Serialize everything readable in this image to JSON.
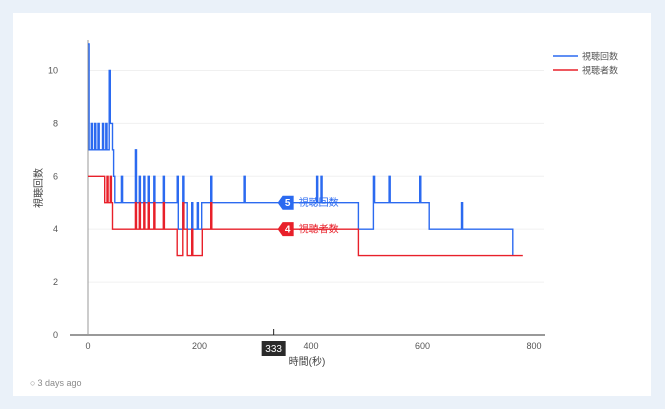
{
  "footer": {
    "timestamp_icon": "clock-icon",
    "timestamp": "3 days ago"
  },
  "chart_data": {
    "type": "line",
    "xlabel": "時間(秒)",
    "ylabel": "視聴回数",
    "xlim": [
      0,
      800
    ],
    "ylim": [
      0,
      11
    ],
    "x_ticks": [
      0,
      200,
      400,
      600,
      800
    ],
    "y_ticks": [
      0,
      2,
      4,
      6,
      8,
      10
    ],
    "legend_position": "top-right",
    "cursor": {
      "x": 333,
      "label": "333"
    },
    "series": [
      {
        "name": "視聴回数",
        "color": "#2b6af0",
        "cursor_value": 5,
        "points": [
          [
            0,
            11
          ],
          [
            2,
            11
          ],
          [
            2,
            7
          ],
          [
            6,
            7
          ],
          [
            6,
            8
          ],
          [
            8,
            8
          ],
          [
            8,
            7
          ],
          [
            12,
            7
          ],
          [
            12,
            8
          ],
          [
            14,
            8
          ],
          [
            14,
            7
          ],
          [
            18,
            7
          ],
          [
            18,
            8
          ],
          [
            20,
            8
          ],
          [
            20,
            7
          ],
          [
            26,
            7
          ],
          [
            26,
            8
          ],
          [
            28,
            8
          ],
          [
            28,
            7
          ],
          [
            32,
            7
          ],
          [
            32,
            8
          ],
          [
            34,
            8
          ],
          [
            34,
            7
          ],
          [
            38,
            7
          ],
          [
            38,
            10
          ],
          [
            40,
            10
          ],
          [
            40,
            8
          ],
          [
            44,
            8
          ],
          [
            44,
            7
          ],
          [
            46,
            7
          ],
          [
            46,
            6
          ],
          [
            48,
            6
          ],
          [
            48,
            5
          ],
          [
            60,
            5
          ],
          [
            60,
            6
          ],
          [
            62,
            6
          ],
          [
            62,
            5
          ],
          [
            85,
            5
          ],
          [
            85,
            7
          ],
          [
            87,
            7
          ],
          [
            87,
            5
          ],
          [
            92,
            5
          ],
          [
            92,
            6
          ],
          [
            94,
            6
          ],
          [
            94,
            5
          ],
          [
            100,
            5
          ],
          [
            100,
            6
          ],
          [
            102,
            6
          ],
          [
            102,
            5
          ],
          [
            108,
            5
          ],
          [
            108,
            6
          ],
          [
            110,
            6
          ],
          [
            110,
            5
          ],
          [
            118,
            5
          ],
          [
            118,
            6
          ],
          [
            120,
            6
          ],
          [
            120,
            5
          ],
          [
            135,
            5
          ],
          [
            135,
            6
          ],
          [
            137,
            6
          ],
          [
            137,
            5
          ],
          [
            160,
            5
          ],
          [
            160,
            6
          ],
          [
            162,
            6
          ],
          [
            162,
            4
          ],
          [
            170,
            4
          ],
          [
            170,
            6
          ],
          [
            172,
            6
          ],
          [
            172,
            5
          ],
          [
            178,
            5
          ],
          [
            178,
            4
          ],
          [
            186,
            4
          ],
          [
            186,
            5
          ],
          [
            188,
            5
          ],
          [
            188,
            4
          ],
          [
            196,
            4
          ],
          [
            196,
            5
          ],
          [
            198,
            5
          ],
          [
            198,
            4
          ],
          [
            204,
            4
          ],
          [
            204,
            5
          ],
          [
            220,
            5
          ],
          [
            220,
            6
          ],
          [
            222,
            6
          ],
          [
            222,
            5
          ],
          [
            280,
            5
          ],
          [
            280,
            6
          ],
          [
            282,
            6
          ],
          [
            282,
            5
          ],
          [
            410,
            5
          ],
          [
            410,
            6
          ],
          [
            412,
            6
          ],
          [
            412,
            5
          ],
          [
            418,
            5
          ],
          [
            418,
            6
          ],
          [
            420,
            6
          ],
          [
            420,
            5
          ],
          [
            485,
            5
          ],
          [
            485,
            4
          ],
          [
            512,
            4
          ],
          [
            512,
            6
          ],
          [
            514,
            6
          ],
          [
            514,
            5
          ],
          [
            540,
            5
          ],
          [
            540,
            6
          ],
          [
            542,
            6
          ],
          [
            542,
            5
          ],
          [
            595,
            5
          ],
          [
            595,
            6
          ],
          [
            597,
            6
          ],
          [
            597,
            5
          ],
          [
            612,
            5
          ],
          [
            612,
            4
          ],
          [
            670,
            4
          ],
          [
            670,
            5
          ],
          [
            672,
            5
          ],
          [
            672,
            4
          ],
          [
            762,
            4
          ],
          [
            762,
            3
          ]
        ]
      },
      {
        "name": "視聴者数",
        "color": "#e8202a",
        "cursor_value": 4,
        "points": [
          [
            0,
            6
          ],
          [
            30,
            6
          ],
          [
            30,
            5
          ],
          [
            34,
            5
          ],
          [
            34,
            6
          ],
          [
            36,
            6
          ],
          [
            36,
            5
          ],
          [
            40,
            5
          ],
          [
            40,
            6
          ],
          [
            42,
            6
          ],
          [
            42,
            5
          ],
          [
            44,
            5
          ],
          [
            44,
            4
          ],
          [
            85,
            4
          ],
          [
            85,
            5
          ],
          [
            87,
            5
          ],
          [
            87,
            4
          ],
          [
            92,
            4
          ],
          [
            92,
            5
          ],
          [
            94,
            5
          ],
          [
            94,
            4
          ],
          [
            100,
            4
          ],
          [
            100,
            5
          ],
          [
            102,
            5
          ],
          [
            102,
            4
          ],
          [
            108,
            4
          ],
          [
            108,
            5
          ],
          [
            110,
            5
          ],
          [
            110,
            4
          ],
          [
            118,
            4
          ],
          [
            118,
            5
          ],
          [
            120,
            5
          ],
          [
            120,
            4
          ],
          [
            135,
            4
          ],
          [
            135,
            5
          ],
          [
            137,
            5
          ],
          [
            137,
            4
          ],
          [
            160,
            4
          ],
          [
            160,
            3
          ],
          [
            170,
            3
          ],
          [
            170,
            5
          ],
          [
            172,
            5
          ],
          [
            172,
            4
          ],
          [
            178,
            4
          ],
          [
            178,
            3
          ],
          [
            186,
            3
          ],
          [
            186,
            4
          ],
          [
            188,
            4
          ],
          [
            188,
            3
          ],
          [
            205,
            3
          ],
          [
            205,
            4
          ],
          [
            220,
            4
          ],
          [
            220,
            5
          ],
          [
            222,
            5
          ],
          [
            222,
            4
          ],
          [
            485,
            4
          ],
          [
            485,
            3
          ],
          [
            780,
            3
          ]
        ]
      }
    ]
  }
}
